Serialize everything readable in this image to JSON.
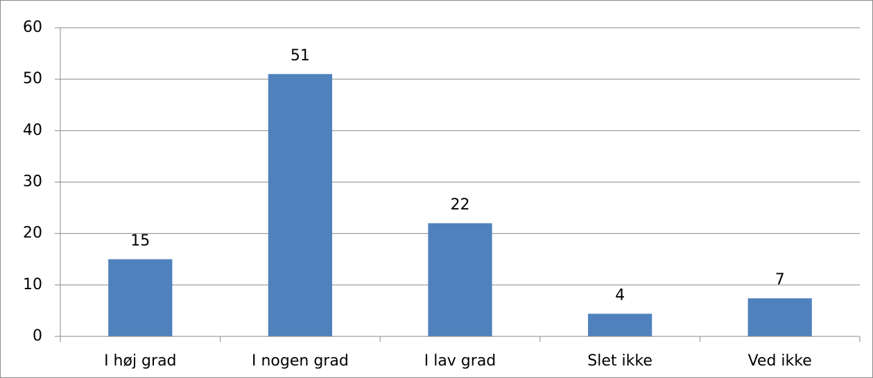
{
  "chart_data": {
    "type": "bar",
    "categories": [
      "I høj grad",
      "I nogen grad",
      "I lav grad",
      "Slet ikke",
      "Ved ikke"
    ],
    "values": [
      15,
      51,
      22,
      4.4,
      7.4
    ],
    "value_labels": [
      "15",
      "51",
      "22",
      "4",
      "7"
    ],
    "color": "#4f81bd",
    "ylim": [
      0,
      60
    ],
    "yticks": [
      0,
      10,
      20,
      30,
      40,
      50,
      60
    ],
    "grid": true
  }
}
